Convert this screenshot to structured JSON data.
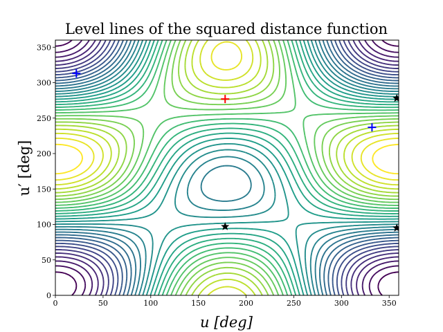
{
  "chart_data": {
    "type": "contour",
    "title": "Level lines of the squared distance function",
    "xlabel": "u [deg]",
    "ylabel": "u′ [deg]",
    "xlim": [
      0,
      360
    ],
    "ylim": [
      0,
      360
    ],
    "x_ticks": [
      0,
      50,
      100,
      150,
      200,
      250,
      300,
      350
    ],
    "y_ticks": [
      0,
      50,
      100,
      150,
      200,
      250,
      300,
      350
    ],
    "x_tick_labels": [
      "0",
      "50",
      "100",
      "150",
      "200",
      "250",
      "300",
      "350"
    ],
    "y_tick_labels": [
      "0",
      "50",
      "100",
      "150",
      "200",
      "250",
      "300",
      "350"
    ],
    "colormap": "viridis",
    "grid": false,
    "contour_field": {
      "description": "squared distance between two points moving on ellipses",
      "max_point": [
        178,
        277
      ],
      "min_points": [
        [
          22,
          313
        ],
        [
          332,
          237
        ]
      ],
      "saddle_points": [
        [
          178,
          97
        ],
        [
          358,
          95
        ],
        [
          358,
          278
        ]
      ],
      "num_levels": 30
    },
    "markers": [
      {
        "kind": "maximum",
        "symbol": "+",
        "color": "#ff0000",
        "points": [
          [
            178,
            277
          ]
        ]
      },
      {
        "kind": "minimum",
        "symbol": "+",
        "color": "#0000ff",
        "points": [
          [
            22,
            313
          ],
          [
            332,
            237
          ]
        ]
      },
      {
        "kind": "saddle",
        "symbol": "★",
        "color": "#000000",
        "points": [
          [
            178,
            97
          ],
          [
            358,
            95
          ],
          [
            358,
            278
          ]
        ]
      }
    ]
  }
}
